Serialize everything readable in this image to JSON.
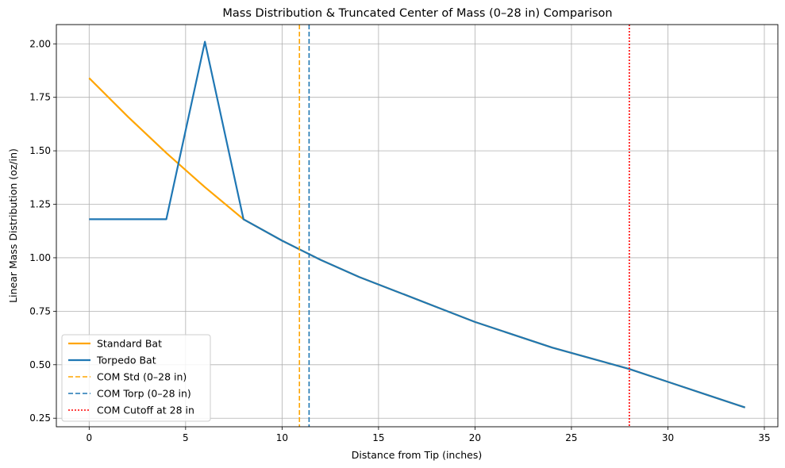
{
  "chart_data": {
    "type": "line",
    "title": "Mass Distribution & Truncated Center of Mass (0–28 in) Comparison",
    "xlabel": "Distance from Tip (inches)",
    "ylabel": "Linear Mass Distribution (oz/in)",
    "xlim": [
      -1.7,
      35.7
    ],
    "ylim": [
      0.21,
      2.09
    ],
    "xticks": [
      0,
      5,
      10,
      15,
      20,
      25,
      30,
      35
    ],
    "yticks": [
      0.25,
      0.5,
      0.75,
      1.0,
      1.25,
      1.5,
      1.75,
      2.0
    ],
    "xtick_labels": [
      "0",
      "5",
      "10",
      "15",
      "20",
      "25",
      "30",
      "35"
    ],
    "ytick_labels": [
      "0.25",
      "0.50",
      "0.75",
      "1.00",
      "1.25",
      "1.50",
      "1.75",
      "2.00"
    ],
    "grid": true,
    "legend_position": "lower-left",
    "series": [
      {
        "name": "Standard Bat",
        "color": "#ffa500",
        "style": "solid",
        "x": [
          0,
          2,
          4,
          6,
          8,
          10,
          12,
          14,
          16,
          18,
          20,
          22,
          24,
          26,
          28,
          30,
          32,
          34
        ],
        "y": [
          1.84,
          1.66,
          1.49,
          1.33,
          1.18,
          1.08,
          0.99,
          0.91,
          0.84,
          0.77,
          0.7,
          0.64,
          0.58,
          0.53,
          0.48,
          0.42,
          0.36,
          0.3
        ]
      },
      {
        "name": "Torpedo Bat",
        "color": "#1f77b4",
        "style": "solid",
        "x": [
          0,
          4,
          6,
          8,
          10,
          12,
          14,
          16,
          18,
          20,
          22,
          24,
          26,
          28,
          30,
          32,
          34
        ],
        "y": [
          1.18,
          1.18,
          2.01,
          1.18,
          1.08,
          0.99,
          0.91,
          0.84,
          0.77,
          0.7,
          0.64,
          0.58,
          0.53,
          0.48,
          0.42,
          0.36,
          0.3
        ]
      }
    ],
    "vlines": [
      {
        "name": "COM Std (0–28 in)",
        "x": 10.9,
        "color": "#ffa500",
        "style": "dashed"
      },
      {
        "name": "COM Torp (0–28 in)",
        "x": 11.4,
        "color": "#1f77b4",
        "style": "dashed"
      },
      {
        "name": "COM Cutoff at 28 in",
        "x": 28,
        "color": "#ff0000",
        "style": "dotted"
      }
    ]
  }
}
